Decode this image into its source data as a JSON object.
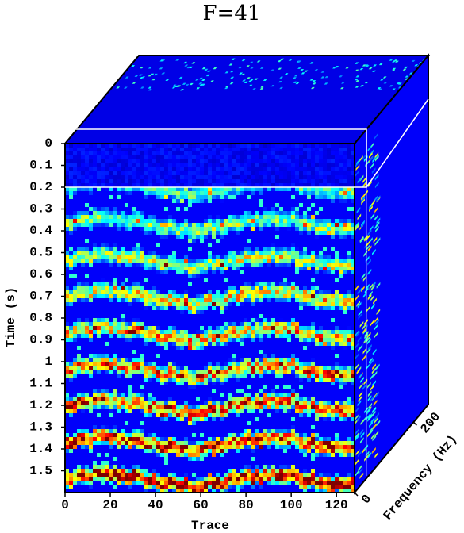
{
  "chart_data": {
    "type": "cube",
    "title": "F=41",
    "x_label": "Trace",
    "y_label": "Time (s)",
    "z_label": "Frequency (Hz)",
    "xlim": [
      0,
      128
    ],
    "xticks": [
      0,
      20,
      40,
      60,
      80,
      100,
      120
    ],
    "ylim": [
      0,
      1.6
    ],
    "yticks": [
      0,
      0.1,
      0.2,
      0.3,
      0.4,
      0.5,
      0.6,
      0.7,
      0.8,
      0.9,
      1,
      1.1,
      1.2,
      1.3,
      1.4,
      1.5
    ],
    "zlim": [
      0,
      250
    ],
    "zticks": [
      0,
      200
    ],
    "colormap": "jet"
  }
}
